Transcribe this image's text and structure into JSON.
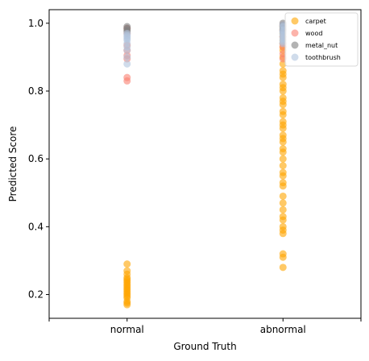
{
  "chart_data": {
    "type": "scatter",
    "xlabel": "Ground Truth",
    "ylabel": "Predicted Score",
    "categories": [
      "normal",
      "abnormal"
    ],
    "x_positions": [
      1,
      2
    ],
    "xlim": [
      0.5,
      2.5
    ],
    "ylim": [
      0.13,
      1.04
    ],
    "yticks": [
      0.2,
      0.4,
      0.6,
      0.8,
      1.0
    ],
    "ytick_labels": [
      "0.2",
      "0.4",
      "0.6",
      "0.8",
      "1.0"
    ],
    "grid": false,
    "legend_position": "top-right",
    "series": [
      {
        "name": "carpet",
        "color": "#FFA500",
        "points": [
          [
            1,
            0.29
          ],
          [
            1,
            0.27
          ],
          [
            1,
            0.26
          ],
          [
            1,
            0.25
          ],
          [
            1,
            0.245
          ],
          [
            1,
            0.24
          ],
          [
            1,
            0.235
          ],
          [
            1,
            0.23
          ],
          [
            1,
            0.225
          ],
          [
            1,
            0.22
          ],
          [
            1,
            0.215
          ],
          [
            1,
            0.21
          ],
          [
            1,
            0.205
          ],
          [
            1,
            0.2
          ],
          [
            1,
            0.195
          ],
          [
            1,
            0.19
          ],
          [
            1,
            0.18
          ],
          [
            1,
            0.175
          ],
          [
            1,
            0.17
          ],
          [
            2,
            0.99
          ],
          [
            2,
            0.98
          ],
          [
            2,
            0.97
          ],
          [
            2,
            0.96
          ],
          [
            2,
            0.95
          ],
          [
            2,
            0.94
          ],
          [
            2,
            0.93
          ],
          [
            2,
            0.92
          ],
          [
            2,
            0.9
          ],
          [
            2,
            0.88
          ],
          [
            2,
            0.86
          ],
          [
            2,
            0.85
          ],
          [
            2,
            0.84
          ],
          [
            2,
            0.82
          ],
          [
            2,
            0.81
          ],
          [
            2,
            0.8
          ],
          [
            2,
            0.78
          ],
          [
            2,
            0.77
          ],
          [
            2,
            0.76
          ],
          [
            2,
            0.74
          ],
          [
            2,
            0.73
          ],
          [
            2,
            0.71
          ],
          [
            2,
            0.7
          ],
          [
            2,
            0.69
          ],
          [
            2,
            0.67
          ],
          [
            2,
            0.66
          ],
          [
            2,
            0.65
          ],
          [
            2,
            0.63
          ],
          [
            2,
            0.62
          ],
          [
            2,
            0.6
          ],
          [
            2,
            0.58
          ],
          [
            2,
            0.56
          ],
          [
            2,
            0.55
          ],
          [
            2,
            0.53
          ],
          [
            2,
            0.52
          ],
          [
            2,
            0.49
          ],
          [
            2,
            0.47
          ],
          [
            2,
            0.45
          ],
          [
            2,
            0.43
          ],
          [
            2,
            0.42
          ],
          [
            2,
            0.4
          ],
          [
            2,
            0.39
          ],
          [
            2,
            0.38
          ],
          [
            2,
            0.32
          ],
          [
            2,
            0.31
          ],
          [
            2,
            0.28
          ]
        ]
      },
      {
        "name": "wood",
        "color": "#FA8072",
        "points": [
          [
            1,
            0.985
          ],
          [
            1,
            0.97
          ],
          [
            1,
            0.935
          ],
          [
            1,
            0.92
          ],
          [
            1,
            0.905
          ],
          [
            1,
            0.895
          ],
          [
            1,
            0.84
          ],
          [
            1,
            0.83
          ],
          [
            2,
            0.995
          ],
          [
            2,
            0.98
          ],
          [
            2,
            0.96
          ],
          [
            2,
            0.94
          ],
          [
            2,
            0.93
          ],
          [
            2,
            0.91
          ],
          [
            2,
            0.895
          ]
        ]
      },
      {
        "name": "metal_nut",
        "color": "#808080",
        "points": [
          [
            1,
            0.99
          ],
          [
            1,
            0.985
          ],
          [
            1,
            0.98
          ],
          [
            1,
            0.975
          ],
          [
            2,
            1.0
          ],
          [
            2,
            0.995
          ],
          [
            2,
            0.99
          ],
          [
            2,
            0.985
          ],
          [
            2,
            0.98
          ],
          [
            2,
            0.975
          ]
        ]
      },
      {
        "name": "toothbrush",
        "color": "#B0C4DE",
        "points": [
          [
            1,
            0.97
          ],
          [
            1,
            0.965
          ],
          [
            1,
            0.96
          ],
          [
            1,
            0.955
          ],
          [
            1,
            0.95
          ],
          [
            1,
            0.94
          ],
          [
            1,
            0.93
          ],
          [
            1,
            0.92
          ],
          [
            1,
            0.9
          ],
          [
            1,
            0.88
          ],
          [
            2,
            0.995
          ],
          [
            2,
            0.99
          ],
          [
            2,
            0.98
          ],
          [
            2,
            0.975
          ],
          [
            2,
            0.97
          ],
          [
            2,
            0.965
          ],
          [
            2,
            0.96
          ],
          [
            2,
            0.955
          ],
          [
            2,
            0.95
          ],
          [
            2,
            0.945
          ],
          [
            2,
            0.94
          ]
        ]
      }
    ]
  }
}
